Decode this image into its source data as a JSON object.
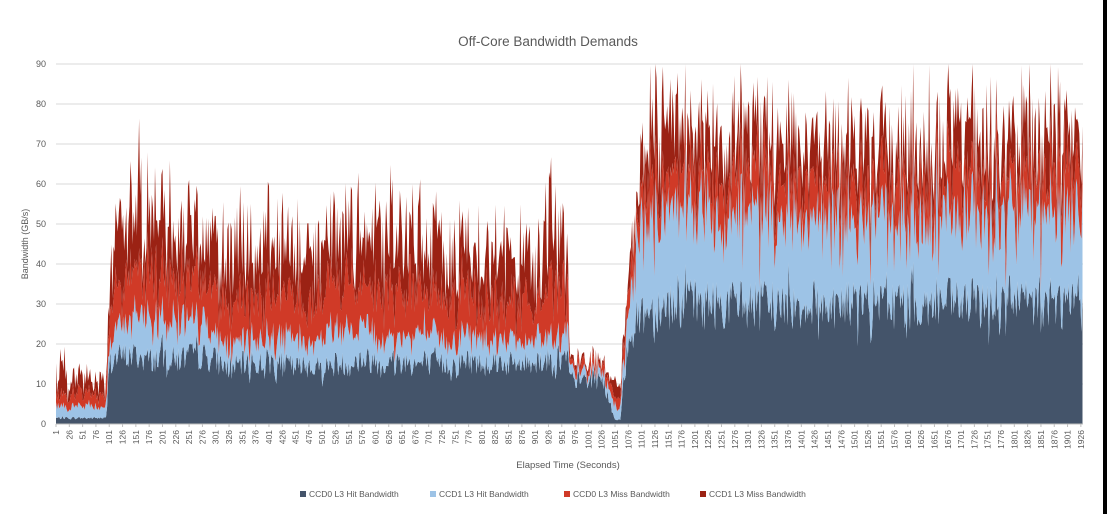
{
  "chart_data": {
    "type": "area",
    "stacked": true,
    "title": "Off-Core Bandwidth Demands",
    "xlabel": "Elapsed Time (Seconds)",
    "ylabel": "Bandwidth (GB/s)",
    "ylim": [
      0,
      90
    ],
    "yticks": [
      0,
      10,
      20,
      30,
      40,
      50,
      60,
      70,
      80,
      90
    ],
    "xlim": [
      1,
      1930
    ],
    "xtick_start": 1,
    "xtick_step": 25,
    "xtick_labels": [
      "1",
      "26",
      "51",
      "76",
      "101",
      "126",
      "151",
      "176",
      "201",
      "226",
      "251",
      "276",
      "301",
      "326",
      "351",
      "376",
      "401",
      "426",
      "451",
      "476",
      "501",
      "526",
      "551",
      "576",
      "601",
      "626",
      "651",
      "676",
      "701",
      "726",
      "751",
      "776",
      "801",
      "826",
      "851",
      "876",
      "901",
      "926",
      "951",
      "976",
      "1001",
      "1026",
      "1051",
      "1076",
      "1101",
      "1126",
      "1151",
      "1176",
      "1201",
      "1226",
      "1251",
      "1276",
      "1301",
      "1326",
      "1351",
      "1376",
      "1401",
      "1426",
      "1451",
      "1476",
      "1501",
      "1526",
      "1551",
      "1576",
      "1601",
      "1626",
      "1651",
      "1676",
      "1701",
      "1726",
      "1751",
      "1776",
      "1801",
      "1826",
      "1851",
      "1876",
      "1901",
      "1926"
    ],
    "grid": "horizontal",
    "legend_position": "bottom",
    "x": [
      1,
      26,
      51,
      76,
      96,
      101,
      126,
      151,
      176,
      201,
      226,
      251,
      276,
      301,
      326,
      351,
      376,
      401,
      426,
      451,
      476,
      501,
      526,
      551,
      576,
      601,
      626,
      651,
      676,
      701,
      726,
      751,
      776,
      801,
      826,
      851,
      876,
      901,
      926,
      951,
      961,
      966,
      1001,
      1026,
      1051,
      1061,
      1076,
      1101,
      1126,
      1151,
      1176,
      1201,
      1226,
      1251,
      1276,
      1301,
      1326,
      1351,
      1376,
      1401,
      1426,
      1451,
      1476,
      1501,
      1526,
      1551,
      1576,
      1601,
      1626,
      1651,
      1676,
      1701,
      1726,
      1751,
      1776,
      1801,
      1826,
      1851,
      1876,
      1901,
      1926
    ],
    "series": [
      {
        "name": "CCD0 L3 Hit Bandwidth",
        "color": "#44546A",
        "values": [
          1.5,
          1.5,
          1.5,
          1.5,
          1.5,
          16,
          17,
          17,
          16,
          17,
          16,
          17,
          17,
          16,
          14,
          15,
          15,
          16,
          15,
          14,
          15,
          14,
          15,
          15,
          16,
          16,
          15,
          16,
          15,
          15,
          15,
          15,
          16,
          15,
          16,
          15,
          15,
          16,
          16,
          16,
          17,
          11,
          11,
          12,
          1,
          1,
          22,
          28,
          29,
          30,
          30,
          30,
          30,
          30,
          30,
          30,
          30,
          30,
          30,
          30,
          30,
          30,
          30,
          30,
          30,
          30,
          30,
          30,
          30,
          30,
          30,
          30,
          30,
          30,
          30,
          30,
          30,
          30,
          30,
          30,
          30
        ]
      },
      {
        "name": "CCD1 L3 Hit Bandwidth",
        "color": "#9DC3E6",
        "values": [
          3,
          3,
          3,
          3,
          3,
          5,
          8,
          10,
          10,
          9,
          9,
          8,
          8,
          6,
          5,
          7,
          6,
          7,
          6,
          7,
          6,
          8,
          9,
          9,
          8,
          7,
          6,
          6,
          8,
          7,
          6,
          6,
          7,
          6,
          6,
          6,
          5,
          6,
          6,
          6,
          8,
          2,
          2,
          2,
          3,
          3,
          8,
          22,
          24,
          25,
          23,
          22,
          22,
          22,
          24,
          23,
          22,
          21,
          21,
          21,
          21,
          22,
          22,
          20,
          21,
          22,
          21,
          21,
          22,
          22,
          21,
          21,
          22,
          22,
          22,
          22,
          22,
          22,
          22,
          23,
          21
        ]
      },
      {
        "name": "CCD0 L3 Miss Bandwidth",
        "color": "#D03A27",
        "values": [
          3,
          3,
          3,
          3,
          3,
          8,
          12,
          12,
          11,
          12,
          12,
          11,
          10,
          10,
          11,
          10,
          10,
          11,
          11,
          10,
          10,
          10,
          12,
          12,
          11,
          12,
          12,
          12,
          11,
          9,
          10,
          10,
          10,
          10,
          10,
          10,
          10,
          11,
          12,
          12,
          13,
          2,
          2,
          2,
          2,
          2,
          5,
          9,
          9,
          10,
          10,
          10,
          9,
          9,
          9,
          10,
          9,
          9,
          9,
          9,
          9,
          9,
          9,
          9,
          9,
          9,
          9,
          9,
          9,
          9,
          10,
          10,
          9,
          9,
          9,
          9,
          9,
          9,
          10,
          10,
          9
        ]
      },
      {
        "name": "CCD1 L3 Miss Bandwidth",
        "color": "#9B2214",
        "values": [
          6,
          6,
          4,
          3,
          3,
          8,
          15,
          15,
          14,
          14,
          14,
          13,
          12,
          12,
          12,
          13,
          13,
          14,
          14,
          13,
          12,
          13,
          14,
          13,
          13,
          14,
          14,
          14,
          15,
          12,
          11,
          12,
          11,
          12,
          12,
          12,
          12,
          13,
          14,
          15,
          15,
          1,
          1,
          1,
          3,
          3,
          5,
          11,
          12,
          13,
          12,
          12,
          11,
          11,
          12,
          12,
          11,
          10,
          10,
          10,
          10,
          10,
          10,
          10,
          10,
          10,
          10,
          10,
          10,
          10,
          10,
          11,
          10,
          10,
          10,
          10,
          10,
          11,
          11,
          11,
          10
        ]
      }
    ]
  }
}
